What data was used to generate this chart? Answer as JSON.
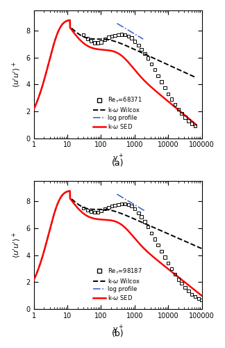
{
  "Re_a": 68371,
  "Re_b": 98187,
  "ylim": [
    0,
    9.5
  ],
  "xlim_min": 1,
  "xlim_max": 100000,
  "yticks": [
    0,
    2,
    4,
    6,
    8
  ],
  "xtick_labels": [
    "1",
    "10",
    "100",
    "1000",
    "10000",
    "100000"
  ],
  "label_a": "(a)",
  "label_b": "(b)",
  "bg_color": "#ffffff",
  "data_a": [
    [
      30,
      7.7
    ],
    [
      40,
      7.4
    ],
    [
      50,
      7.25
    ],
    [
      65,
      7.1
    ],
    [
      80,
      7.1
    ],
    [
      100,
      7.15
    ],
    [
      130,
      7.35
    ],
    [
      170,
      7.5
    ],
    [
      210,
      7.6
    ],
    [
      260,
      7.65
    ],
    [
      330,
      7.7
    ],
    [
      410,
      7.72
    ],
    [
      520,
      7.68
    ],
    [
      650,
      7.6
    ],
    [
      820,
      7.45
    ],
    [
      1000,
      7.2
    ],
    [
      1300,
      6.9
    ],
    [
      1600,
      6.6
    ],
    [
      2000,
      6.3
    ],
    [
      2500,
      5.95
    ],
    [
      3200,
      5.5
    ],
    [
      4000,
      5.1
    ],
    [
      5000,
      4.65
    ],
    [
      6300,
      4.2
    ],
    [
      8000,
      3.75
    ],
    [
      10000,
      3.3
    ],
    [
      12500,
      2.9
    ],
    [
      16000,
      2.5
    ],
    [
      20000,
      2.15
    ],
    [
      25000,
      1.85
    ],
    [
      32000,
      1.55
    ],
    [
      40000,
      1.3
    ],
    [
      50000,
      1.1
    ],
    [
      63000,
      0.9
    ]
  ],
  "data_b": [
    [
      30,
      7.5
    ],
    [
      40,
      7.35
    ],
    [
      50,
      7.25
    ],
    [
      65,
      7.2
    ],
    [
      80,
      7.2
    ],
    [
      100,
      7.3
    ],
    [
      130,
      7.45
    ],
    [
      170,
      7.55
    ],
    [
      210,
      7.65
    ],
    [
      260,
      7.7
    ],
    [
      330,
      7.75
    ],
    [
      410,
      7.8
    ],
    [
      520,
      7.8
    ],
    [
      650,
      7.75
    ],
    [
      820,
      7.65
    ],
    [
      1000,
      7.45
    ],
    [
      1300,
      7.15
    ],
    [
      1600,
      6.85
    ],
    [
      2000,
      6.5
    ],
    [
      2500,
      6.1
    ],
    [
      3200,
      5.65
    ],
    [
      4000,
      5.2
    ],
    [
      5000,
      4.75
    ],
    [
      6300,
      4.3
    ],
    [
      8000,
      3.85
    ],
    [
      10000,
      3.4
    ],
    [
      12500,
      3.0
    ],
    [
      16000,
      2.6
    ],
    [
      20000,
      2.2
    ],
    [
      25000,
      1.9
    ],
    [
      32000,
      1.6
    ],
    [
      40000,
      1.35
    ],
    [
      50000,
      1.1
    ],
    [
      63000,
      0.92
    ],
    [
      80000,
      0.78
    ],
    [
      98000,
      0.68
    ]
  ]
}
